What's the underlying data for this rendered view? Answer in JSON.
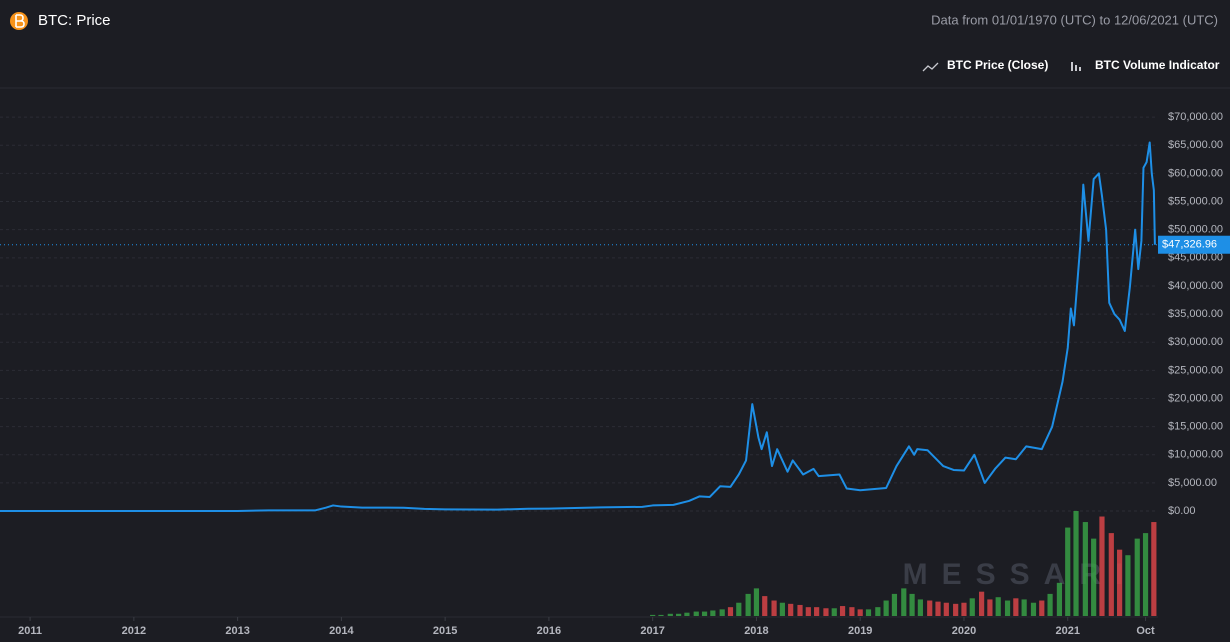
{
  "chart_data": {
    "type": "line",
    "title": "BTC: Price",
    "subtitle": "Data from 01/01/1970 (UTC) to 12/06/2021 (UTC)",
    "watermark": "MESSARI",
    "xlim": [
      2010.71,
      2021.87
    ],
    "xticks": [
      2011,
      2012,
      2013,
      2014,
      2015,
      2016,
      2017,
      2018,
      2019,
      2020,
      2021,
      {
        "value": 2021.75,
        "label": "Oct"
      }
    ],
    "ylim": [
      -1500,
      75000
    ],
    "yticks": [
      {
        "value": 0,
        "label": "$0.00"
      },
      {
        "value": 5000,
        "label": "$5,000.00"
      },
      {
        "value": 10000,
        "label": "$10,000.00"
      },
      {
        "value": 15000,
        "label": "$15,000.00"
      },
      {
        "value": 20000,
        "label": "$20,000.00"
      },
      {
        "value": 25000,
        "label": "$25,000.00"
      },
      {
        "value": 30000,
        "label": "$30,000.00"
      },
      {
        "value": 35000,
        "label": "$35,000.00"
      },
      {
        "value": 40000,
        "label": "$40,000.00"
      },
      {
        "value": 45000,
        "label": "$45,000.00"
      },
      {
        "value": 50000,
        "label": "$50,000.00"
      },
      {
        "value": 55000,
        "label": "$55,000.00"
      },
      {
        "value": 60000,
        "label": "$60,000.00"
      },
      {
        "value": 65000,
        "label": "$65,000.00"
      },
      {
        "value": 70000,
        "label": "$70,000.00"
      }
    ],
    "grid": true,
    "series": [
      {
        "name": "BTC Price (Close)",
        "color": "#1e8fe6",
        "x": [
          2010.71,
          2011.0,
          2011.45,
          2012.0,
          2012.5,
          2013.0,
          2013.3,
          2013.75,
          2013.85,
          2013.92,
          2014.0,
          2014.2,
          2014.45,
          2014.6,
          2014.8,
          2015.0,
          2015.5,
          2015.8,
          2016.0,
          2016.5,
          2016.9,
          2017.0,
          2017.2,
          2017.35,
          2017.45,
          2017.55,
          2017.65,
          2017.75,
          2017.83,
          2017.9,
          2017.96,
          2018.02,
          2018.05,
          2018.1,
          2018.15,
          2018.2,
          2018.3,
          2018.35,
          2018.45,
          2018.55,
          2018.6,
          2018.8,
          2018.87,
          2019.0,
          2019.25,
          2019.35,
          2019.47,
          2019.52,
          2019.55,
          2019.65,
          2019.8,
          2019.9,
          2020.0,
          2020.1,
          2020.2,
          2020.3,
          2020.4,
          2020.5,
          2020.6,
          2020.75,
          2020.85,
          2020.95,
          2021.0,
          2021.03,
          2021.06,
          2021.09,
          2021.12,
          2021.15,
          2021.2,
          2021.25,
          2021.3,
          2021.33,
          2021.37,
          2021.4,
          2021.45,
          2021.5,
          2021.55,
          2021.6,
          2021.65,
          2021.68,
          2021.71,
          2021.73,
          2021.76,
          2021.79,
          2021.81,
          2021.83,
          2021.84
        ],
        "values": [
          0.1,
          0.3,
          15,
          5,
          7,
          13,
          130,
          130,
          600,
          1000,
          800,
          600,
          600,
          580,
          380,
          300,
          260,
          400,
          430,
          650,
          750,
          1000,
          1100,
          1800,
          2600,
          2500,
          4400,
          4300,
          6500,
          9000,
          19000,
          13000,
          11000,
          14000,
          8000,
          11000,
          7000,
          9000,
          6500,
          7500,
          6200,
          6500,
          4000,
          3700,
          4100,
          8000,
          11500,
          10000,
          11000,
          10800,
          8000,
          7300,
          7200,
          10000,
          5000,
          7500,
          9500,
          9200,
          11500,
          11000,
          15000,
          23000,
          29000,
          36000,
          33000,
          40000,
          47000,
          58000,
          48000,
          59000,
          60000,
          56000,
          50000,
          37000,
          35000,
          34000,
          32000,
          40000,
          50000,
          43000,
          48000,
          61000,
          62000,
          65500,
          60000,
          57000,
          47326.96
        ],
        "last_label": "$47,326.96"
      },
      {
        "name": "BTC Volume Indicator",
        "type": "bar",
        "up_color": "#3aa847",
        "down_color": "#e5474a",
        "x": [
          2017.0,
          2017.08,
          2017.17,
          2017.25,
          2017.33,
          2017.42,
          2017.5,
          2017.58,
          2017.67,
          2017.75,
          2017.83,
          2017.92,
          2018.0,
          2018.08,
          2018.17,
          2018.25,
          2018.33,
          2018.42,
          2018.5,
          2018.58,
          2018.67,
          2018.75,
          2018.83,
          2018.92,
          2019.0,
          2019.08,
          2019.17,
          2019.25,
          2019.33,
          2019.42,
          2019.5,
          2019.58,
          2019.67,
          2019.75,
          2019.83,
          2019.92,
          2020.0,
          2020.08,
          2020.17,
          2020.25,
          2020.33,
          2020.42,
          2020.5,
          2020.58,
          2020.67,
          2020.75,
          2020.83,
          2020.92,
          2021.0,
          2021.08,
          2021.17,
          2021.25,
          2021.33,
          2021.42,
          2021.5,
          2021.58,
          2021.67,
          2021.75,
          2021.83
        ],
        "values": [
          1,
          1,
          2,
          2,
          3,
          4,
          4,
          5,
          6,
          8,
          12,
          20,
          25,
          18,
          14,
          12,
          11,
          10,
          8,
          8,
          7,
          7,
          9,
          8,
          6,
          6,
          8,
          14,
          20,
          25,
          20,
          15,
          14,
          13,
          12,
          11,
          12,
          16,
          22,
          15,
          17,
          14,
          16,
          15,
          12,
          14,
          20,
          30,
          80,
          95,
          85,
          70,
          90,
          75,
          60,
          55,
          70,
          75,
          85
        ]
      }
    ]
  }
}
